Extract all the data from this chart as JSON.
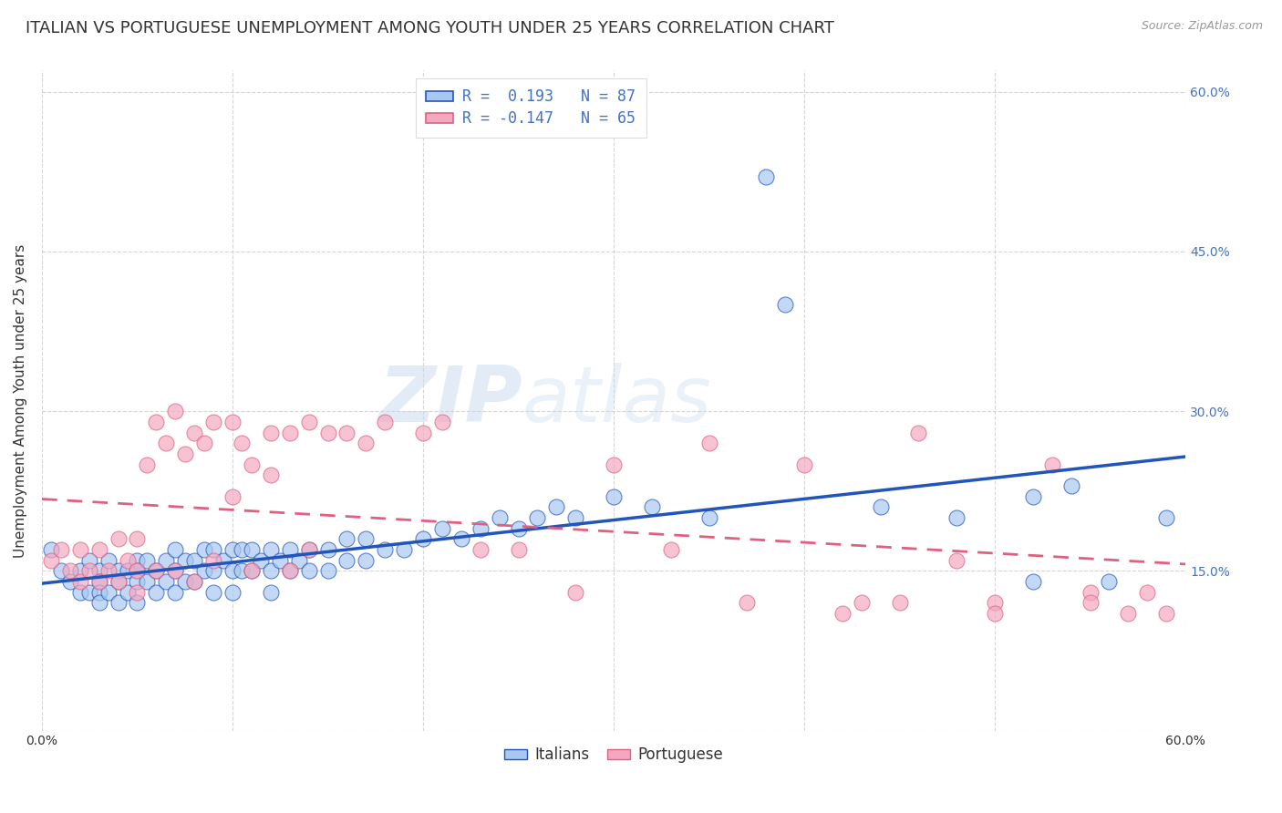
{
  "title": "ITALIAN VS PORTUGUESE UNEMPLOYMENT AMONG YOUTH UNDER 25 YEARS CORRELATION CHART",
  "source": "Source: ZipAtlas.com",
  "ylabel": "Unemployment Among Youth under 25 years",
  "xlim": [
    0.0,
    0.6
  ],
  "ylim": [
    0.0,
    0.62
  ],
  "italian_color": "#A8C8F0",
  "portuguese_color": "#F4A8C0",
  "italian_line_color": "#2255BB",
  "portuguese_line_color": "#E06080",
  "legend_R_italian": "R =  0.193",
  "legend_N_italian": "N = 87",
  "legend_R_portuguese": "R = -0.147",
  "legend_N_portuguese": "N = 65",
  "watermark_zip": "ZIP",
  "watermark_atlas": "atlas",
  "background_color": "#FFFFFF",
  "grid_color": "#CCCCCC",
  "title_fontsize": 13,
  "axis_fontsize": 11,
  "tick_fontsize": 10,
  "legend_fontsize": 12,
  "italian_x": [
    0.005,
    0.01,
    0.015,
    0.02,
    0.02,
    0.025,
    0.025,
    0.03,
    0.03,
    0.03,
    0.03,
    0.035,
    0.035,
    0.04,
    0.04,
    0.04,
    0.045,
    0.045,
    0.05,
    0.05,
    0.05,
    0.05,
    0.055,
    0.055,
    0.06,
    0.06,
    0.065,
    0.065,
    0.07,
    0.07,
    0.07,
    0.075,
    0.075,
    0.08,
    0.08,
    0.085,
    0.085,
    0.09,
    0.09,
    0.09,
    0.095,
    0.1,
    0.1,
    0.1,
    0.105,
    0.105,
    0.11,
    0.11,
    0.115,
    0.12,
    0.12,
    0.12,
    0.125,
    0.13,
    0.13,
    0.135,
    0.14,
    0.14,
    0.15,
    0.15,
    0.16,
    0.16,
    0.17,
    0.17,
    0.18,
    0.19,
    0.2,
    0.21,
    0.22,
    0.23,
    0.24,
    0.25,
    0.26,
    0.27,
    0.28,
    0.3,
    0.32,
    0.35,
    0.38,
    0.39,
    0.44,
    0.48,
    0.52,
    0.52,
    0.54,
    0.56,
    0.59
  ],
  "italian_y": [
    0.17,
    0.15,
    0.14,
    0.15,
    0.13,
    0.16,
    0.13,
    0.15,
    0.14,
    0.13,
    0.12,
    0.16,
    0.13,
    0.15,
    0.14,
    0.12,
    0.15,
    0.13,
    0.16,
    0.15,
    0.14,
    0.12,
    0.16,
    0.14,
    0.15,
    0.13,
    0.16,
    0.14,
    0.17,
    0.15,
    0.13,
    0.16,
    0.14,
    0.16,
    0.14,
    0.17,
    0.15,
    0.17,
    0.15,
    0.13,
    0.16,
    0.17,
    0.15,
    0.13,
    0.17,
    0.15,
    0.17,
    0.15,
    0.16,
    0.17,
    0.15,
    0.13,
    0.16,
    0.17,
    0.15,
    0.16,
    0.17,
    0.15,
    0.17,
    0.15,
    0.18,
    0.16,
    0.18,
    0.16,
    0.17,
    0.17,
    0.18,
    0.19,
    0.18,
    0.19,
    0.2,
    0.19,
    0.2,
    0.21,
    0.2,
    0.22,
    0.21,
    0.2,
    0.52,
    0.4,
    0.21,
    0.2,
    0.14,
    0.22,
    0.23,
    0.14,
    0.2
  ],
  "portuguese_x": [
    0.005,
    0.01,
    0.015,
    0.02,
    0.02,
    0.025,
    0.03,
    0.03,
    0.035,
    0.04,
    0.04,
    0.045,
    0.05,
    0.05,
    0.05,
    0.055,
    0.06,
    0.06,
    0.065,
    0.07,
    0.07,
    0.075,
    0.08,
    0.08,
    0.085,
    0.09,
    0.09,
    0.1,
    0.1,
    0.105,
    0.11,
    0.11,
    0.12,
    0.12,
    0.13,
    0.13,
    0.14,
    0.14,
    0.15,
    0.16,
    0.17,
    0.18,
    0.2,
    0.21,
    0.23,
    0.25,
    0.28,
    0.3,
    0.33,
    0.35,
    0.37,
    0.4,
    0.43,
    0.46,
    0.48,
    0.5,
    0.53,
    0.55,
    0.57,
    0.58,
    0.59,
    0.55,
    0.5,
    0.45,
    0.42
  ],
  "portuguese_y": [
    0.16,
    0.17,
    0.15,
    0.17,
    0.14,
    0.15,
    0.17,
    0.14,
    0.15,
    0.18,
    0.14,
    0.16,
    0.18,
    0.15,
    0.13,
    0.25,
    0.29,
    0.15,
    0.27,
    0.3,
    0.15,
    0.26,
    0.28,
    0.14,
    0.27,
    0.29,
    0.16,
    0.29,
    0.22,
    0.27,
    0.25,
    0.15,
    0.28,
    0.24,
    0.28,
    0.15,
    0.29,
    0.17,
    0.28,
    0.28,
    0.27,
    0.29,
    0.28,
    0.29,
    0.17,
    0.17,
    0.13,
    0.25,
    0.17,
    0.27,
    0.12,
    0.25,
    0.12,
    0.28,
    0.16,
    0.12,
    0.25,
    0.13,
    0.11,
    0.13,
    0.11,
    0.12,
    0.11,
    0.12,
    0.11
  ]
}
